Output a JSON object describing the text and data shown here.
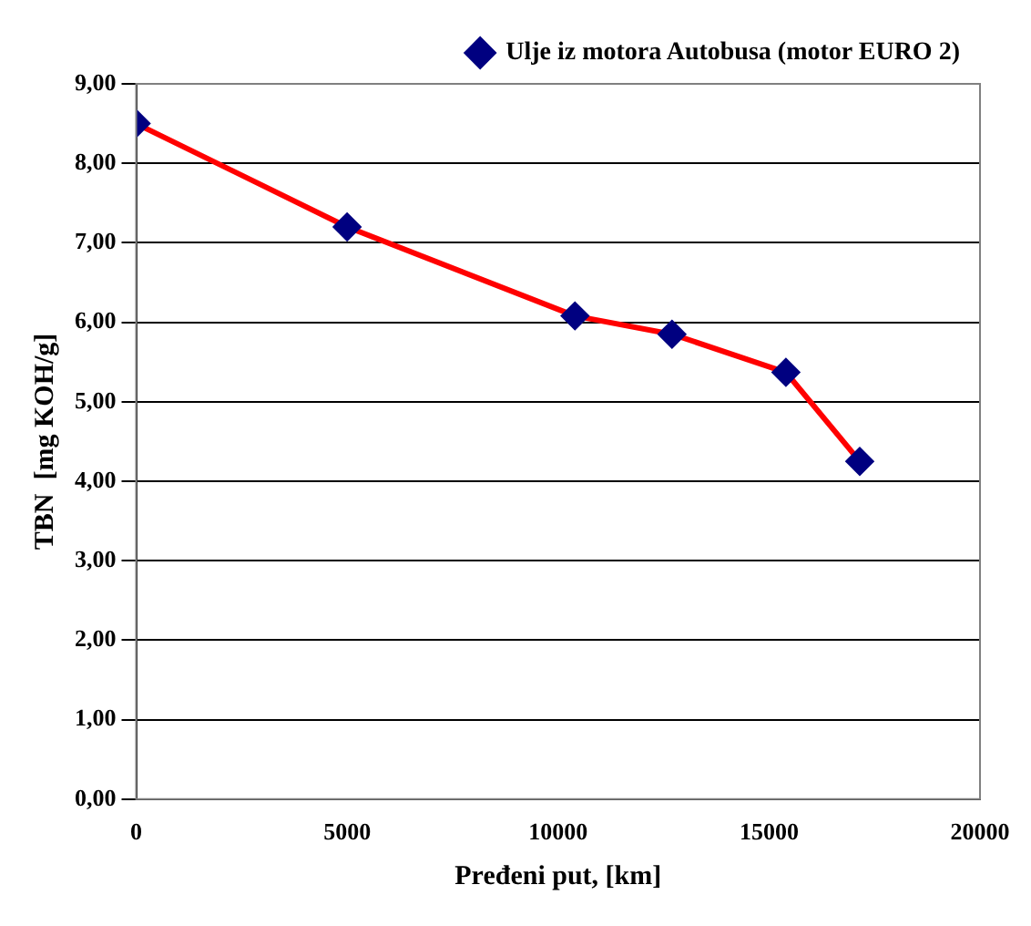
{
  "chart_data": {
    "type": "line",
    "xlabel": "Pređeni put, [km]",
    "ylabel": "TBN  [mg KOH/g]",
    "x": [
      0,
      5000,
      10400,
      12700,
      15400,
      17150
    ],
    "series": [
      {
        "name": "Ulje iz motora Autobusa (motor EURO 2)",
        "color": "#ff0000",
        "values": [
          8.5,
          7.2,
          6.08,
          5.85,
          5.37,
          4.25
        ]
      }
    ],
    "xlim": [
      0,
      20000
    ],
    "xticks": [
      0,
      5000,
      10000,
      15000,
      20000
    ],
    "ylim": [
      0,
      9
    ],
    "yticks": [
      {
        "value": 0,
        "label": "0,00"
      },
      {
        "value": 1,
        "label": "1,00"
      },
      {
        "value": 2,
        "label": "2,00"
      },
      {
        "value": 3,
        "label": "3,00"
      },
      {
        "value": 4,
        "label": "4,00"
      },
      {
        "value": 5,
        "label": "5,00"
      },
      {
        "value": 6,
        "label": "6,00"
      },
      {
        "value": 7,
        "label": "7,00"
      },
      {
        "value": 8,
        "label": "8,00"
      },
      {
        "value": 9,
        "label": "9,00"
      }
    ],
    "grid": "y",
    "legend": "top right",
    "marker": "diamond",
    "line_style": "solid"
  }
}
